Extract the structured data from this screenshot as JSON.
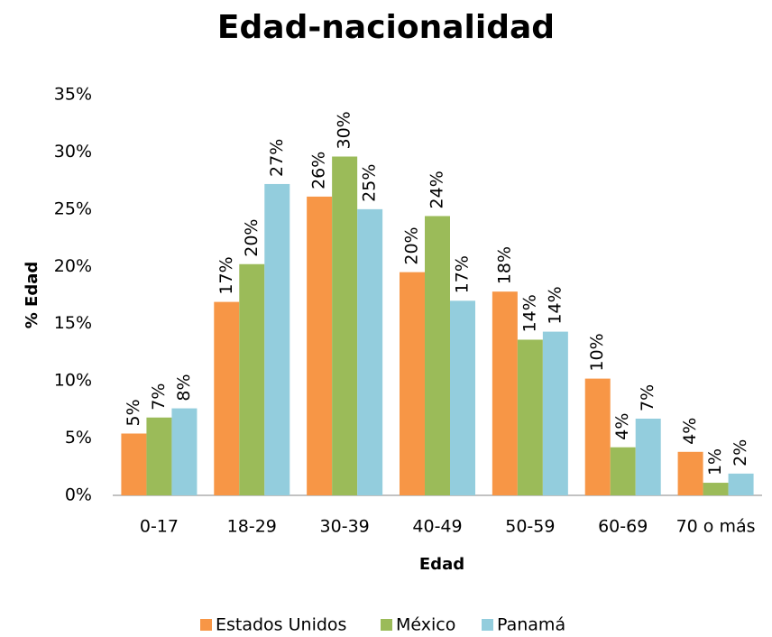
{
  "chart_data": {
    "type": "bar",
    "title": "Edad-nacionalidad",
    "x_label": "Edad",
    "y_label": "% Edad",
    "categories": [
      "0-17",
      "18-29",
      "30-39",
      "40-49",
      "50-59",
      "60-69",
      "70 o más"
    ],
    "series": [
      {
        "name": "Estados Unidos",
        "color": "#f79646",
        "values": [
          5.4,
          16.9,
          26.1,
          19.5,
          17.8,
          10.2,
          3.8
        ],
        "value_labels": [
          "5%",
          "17%",
          "26%",
          "20%",
          "18%",
          "10%",
          "4%"
        ]
      },
      {
        "name": "México",
        "color": "#9bbb59",
        "values": [
          6.8,
          20.2,
          29.6,
          24.4,
          13.6,
          4.2,
          1.1
        ],
        "value_labels": [
          "7%",
          "20%",
          "30%",
          "24%",
          "14%",
          "4%",
          "1%"
        ]
      },
      {
        "name": "Panamá",
        "color": "#93cddd",
        "values": [
          7.6,
          27.2,
          25.0,
          17.0,
          14.3,
          6.7,
          1.9
        ],
        "value_labels": [
          "8%",
          "27%",
          "25%",
          "17%",
          "14%",
          "7%",
          "2%"
        ]
      }
    ],
    "ylim": [
      0,
      35
    ],
    "yticks": [
      {
        "value": 0,
        "label": "0%"
      },
      {
        "value": 5,
        "label": "5%"
      },
      {
        "value": 10,
        "label": "10%"
      },
      {
        "value": 15,
        "label": "15%"
      },
      {
        "value": 20,
        "label": "20%"
      },
      {
        "value": 25,
        "label": "25%"
      },
      {
        "value": 30,
        "label": "30%"
      },
      {
        "value": 35,
        "label": "35%"
      }
    ],
    "grid": false,
    "legend": "bottom"
  }
}
